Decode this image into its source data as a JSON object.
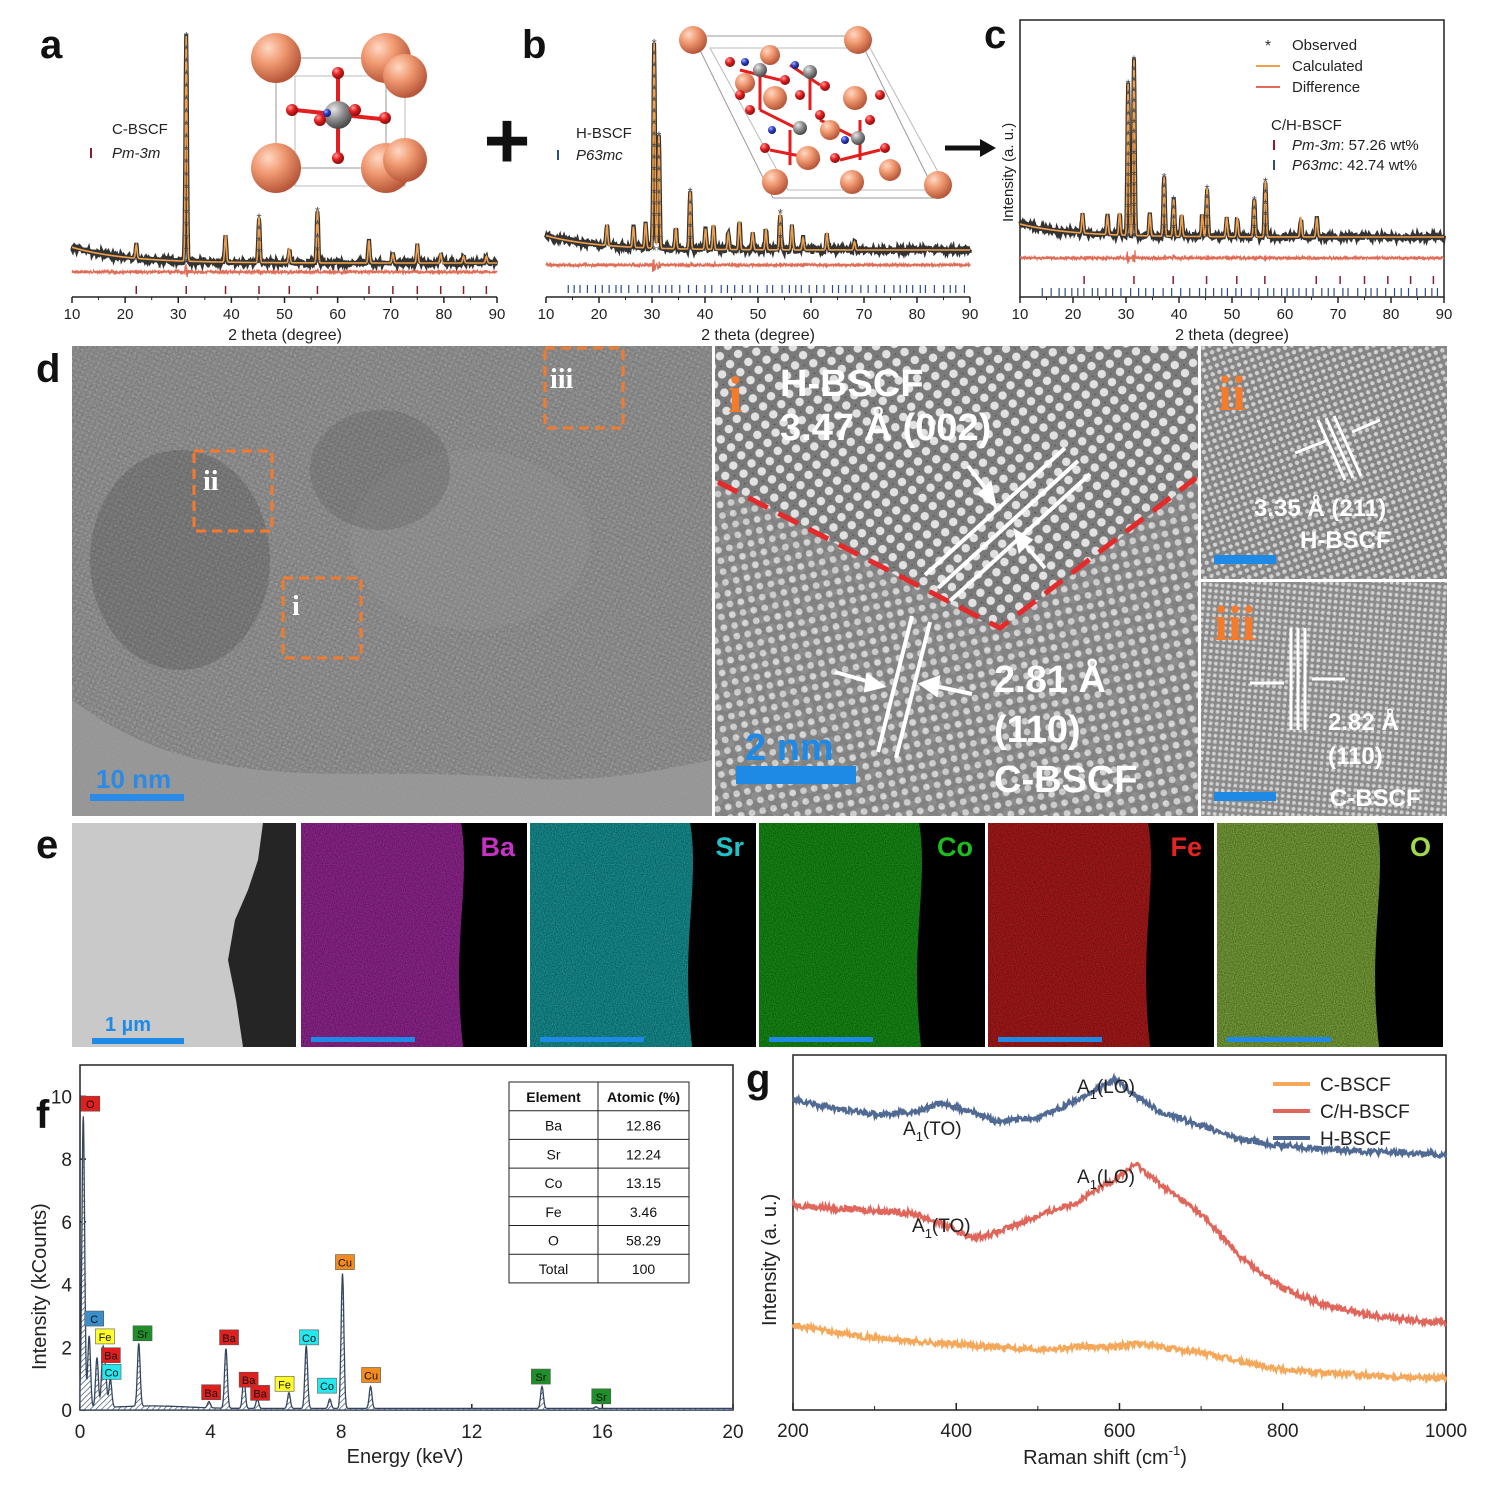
{
  "panels": {
    "a": "a",
    "b": "b",
    "c": "c",
    "d": "d",
    "e": "e",
    "f": "f",
    "g": "g"
  },
  "xrd": {
    "xlabel": "2 theta (degree)",
    "ylabel_c": "Intensity (a. u.)",
    "ticks": [
      "10",
      "20",
      "30",
      "40",
      "50",
      "60",
      "70",
      "80",
      "90"
    ],
    "a": {
      "sample": "C-BSCF",
      "phase": "Pm-3m"
    },
    "b": {
      "sample": "H-BSCF",
      "phase": "P63mc"
    },
    "c": {
      "legend": [
        "Observed",
        "Calculated",
        "Difference"
      ],
      "sample": "C/H-BSCF",
      "phase1": "Pm-3m",
      "phase1_value": ": 57.26 wt%",
      "phase2": "P63mc",
      "phase2_value": ": 42.74 wt%"
    },
    "colors": {
      "observed": "#333333",
      "calculated": "#f0a04b",
      "difference": "#e06c56",
      "tick_c": "#8b1c2c",
      "tick_h": "#2c4a8c"
    }
  },
  "chart_data": [
    {
      "type": "scatter",
      "title": "a",
      "xlabel": "2 theta (degree)",
      "ylabel": "",
      "xlim": [
        10,
        90
      ],
      "series": [
        {
          "name": "C-BSCF (Pm-3m)",
          "peaks_x": [
            22.1,
            31.5,
            38.9,
            45.2,
            50.9,
            56.2,
            65.9,
            70.4,
            75.0,
            79.4,
            83.7,
            88.0
          ],
          "peaks_y": [
            0.06,
            1.0,
            0.12,
            0.2,
            0.06,
            0.23,
            0.1,
            0.04,
            0.08,
            0.04,
            0.03,
            0.03
          ]
        }
      ]
    },
    {
      "type": "scatter",
      "title": "b",
      "xlabel": "2 theta (degree)",
      "ylabel": "",
      "xlim": [
        10,
        90
      ],
      "series": [
        {
          "name": "H-BSCF (P63mc)",
          "peaks_x": [
            21.5,
            26.5,
            28.8,
            30.4,
            31.3,
            34.5,
            37.2,
            40.1,
            41.6,
            44.4,
            46.5,
            49.0,
            51.5,
            54.2,
            56.4,
            58.5,
            63.0,
            68.2
          ],
          "peaks_y": [
            0.1,
            0.1,
            0.12,
            1.0,
            0.55,
            0.1,
            0.28,
            0.1,
            0.12,
            0.08,
            0.14,
            0.08,
            0.1,
            0.18,
            0.12,
            0.06,
            0.08,
            0.04
          ]
        }
      ]
    },
    {
      "type": "scatter",
      "title": "c",
      "xlabel": "2 theta (degree)",
      "ylabel": "Intensity (a. u.)",
      "xlim": [
        10,
        90
      ],
      "series": [
        {
          "name": "C/H-BSCF",
          "peaks_x": [
            21.8,
            26.5,
            28.8,
            30.4,
            31.5,
            34.5,
            37.2,
            39.0,
            40.5,
            44.4,
            45.3,
            49.0,
            51.0,
            54.2,
            56.3,
            63.0,
            66.0
          ],
          "peaks_y": [
            0.1,
            0.1,
            0.12,
            0.82,
            0.95,
            0.12,
            0.32,
            0.2,
            0.12,
            0.12,
            0.26,
            0.1,
            0.1,
            0.2,
            0.3,
            0.1,
            0.1
          ]
        }
      ]
    },
    {
      "type": "bar",
      "title": "f",
      "xlabel": "Energy (keV)",
      "ylabel": "Intensity (kCounts)",
      "xlim": [
        0,
        20
      ],
      "ylim": [
        0,
        11
      ],
      "x": [
        0.1,
        0.28,
        0.52,
        0.7,
        0.78,
        0.93,
        1.8,
        3.95,
        4.47,
        5.02,
        5.43,
        6.4,
        6.93,
        7.65,
        8.04,
        8.9,
        14.15,
        15.8
      ],
      "values": [
        9.3,
        2.3,
        1.6,
        1.75,
        1.0,
        0.9,
        2.0,
        0.2,
        1.9,
        1.0,
        0.3,
        0.5,
        2.0,
        0.3,
        4.3,
        0.7,
        0.7,
        0.05
      ],
      "peak_labels": [
        {
          "text": "O",
          "x": 0.3,
          "y": 9.75,
          "color": "#e0201e"
        },
        {
          "text": "C",
          "x": 0.42,
          "y": 2.9,
          "color": "#3a8ec9"
        },
        {
          "text": "Fe",
          "x": 0.75,
          "y": 2.33,
          "color": "#ffff2a"
        },
        {
          "text": "Ba",
          "x": 0.93,
          "y": 1.73,
          "color": "#e0201e"
        },
        {
          "text": "Co",
          "x": 0.95,
          "y": 1.2,
          "color": "#24e8ee"
        },
        {
          "text": "Sr",
          "x": 1.9,
          "y": 2.43,
          "color": "#1f8f2a"
        },
        {
          "text": "Ba",
          "x": 4.0,
          "y": 0.55,
          "color": "#e0201e"
        },
        {
          "text": "Ba",
          "x": 4.55,
          "y": 2.3,
          "color": "#e0201e"
        },
        {
          "text": "Ba",
          "x": 5.15,
          "y": 0.95,
          "color": "#e0201e"
        },
        {
          "text": "Ba",
          "x": 5.5,
          "y": 0.53,
          "color": "#e0201e"
        },
        {
          "text": "Fe",
          "x": 6.25,
          "y": 0.82,
          "color": "#ffff2a"
        },
        {
          "text": "Co",
          "x": 7.0,
          "y": 2.3,
          "color": "#24e8ee"
        },
        {
          "text": "Co",
          "x": 7.55,
          "y": 0.76,
          "color": "#24e8ee"
        },
        {
          "text": "Cu",
          "x": 8.1,
          "y": 4.7,
          "color": "#f28c1e"
        },
        {
          "text": "Cu",
          "x": 8.9,
          "y": 1.1,
          "color": "#f28c1e"
        },
        {
          "text": "Sr",
          "x": 14.1,
          "y": 1.05,
          "color": "#1f8f2a"
        },
        {
          "text": "Sr",
          "x": 15.95,
          "y": 0.42,
          "color": "#1f8f2a"
        }
      ]
    },
    {
      "type": "line",
      "title": "g",
      "xlabel": "Raman shift (cm-1)",
      "ylabel": "Intensity (a. u.)",
      "xlim": [
        200,
        1000
      ],
      "x": [
        200,
        250,
        300,
        350,
        380,
        420,
        450,
        500,
        550,
        595,
        620,
        650,
        700,
        750,
        800,
        850,
        900,
        950,
        1000
      ],
      "series": [
        {
          "name": "H-BSCF",
          "values": [
            8.4,
            8.15,
            8.0,
            8.05,
            8.3,
            8.05,
            7.8,
            7.9,
            8.4,
            8.95,
            8.5,
            8.05,
            7.7,
            7.3,
            7.15,
            7.05,
            7.0,
            6.95,
            6.9
          ]
        },
        {
          "name": "C/H-BSCF",
          "values": [
            5.55,
            5.45,
            5.4,
            5.3,
            5.05,
            4.65,
            4.8,
            5.25,
            5.65,
            6.25,
            6.65,
            6.1,
            5.3,
            4.1,
            3.3,
            2.85,
            2.6,
            2.45,
            2.35
          ]
        },
        {
          "name": "C-BSCF",
          "values": [
            2.3,
            2.1,
            1.95,
            1.85,
            1.8,
            1.75,
            1.7,
            1.65,
            1.7,
            1.72,
            1.8,
            1.7,
            1.55,
            1.3,
            1.1,
            1.0,
            0.95,
            0.9,
            0.85
          ]
        }
      ],
      "annotations": [
        "A1(TO)",
        "A1(LO)",
        "A1(TO)",
        "A1(LO)"
      ]
    }
  ],
  "tem": {
    "scale_main": "10 nm",
    "scale_i": "2 nm",
    "roi": [
      "i",
      "ii",
      "iii"
    ],
    "i_title": "H-BSCF",
    "i_spacing": "3.47 Å (002)",
    "i_cspacing": "2.81 Å",
    "i_cplane": "(110)",
    "i_csample": "C-BSCF",
    "ii_spacing": "3.35 Å (211)",
    "ii_sample": "H-BSCF",
    "iii_spacing": "2.82 Å",
    "iii_plane": "(110)",
    "iii_sample": "C-BSCF"
  },
  "eds_map": {
    "scale": "1 µm",
    "elements": [
      {
        "name": "Ba",
        "color": "#c532c4"
      },
      {
        "name": "Sr",
        "color": "#1fc3c7"
      },
      {
        "name": "Co",
        "color": "#1dbd1c"
      },
      {
        "name": "Fe",
        "color": "#e52323"
      },
      {
        "name": "O",
        "color": "#a2d84c"
      }
    ]
  },
  "eds_spec": {
    "xlabel": "Energy (keV)",
    "ylabel": "Intensity (kCounts)",
    "xticks": [
      "0",
      "4",
      "8",
      "12",
      "16",
      "20"
    ],
    "yticks": [
      "0",
      "2",
      "4",
      "6",
      "8",
      "10"
    ],
    "table_header": [
      "Element",
      "Atomic (%)"
    ],
    "table_rows": [
      [
        "Ba",
        "12.86"
      ],
      [
        "Sr",
        "12.24"
      ],
      [
        "Co",
        "13.15"
      ],
      [
        "Fe",
        "3.46"
      ],
      [
        "O",
        "58.29"
      ],
      [
        "Total",
        "100"
      ]
    ]
  },
  "raman": {
    "xlabel": "Raman shift (cm",
    "xlabel_sup": "-1",
    "xlabel_end": ")",
    "ylabel": "Intensity (a. u.)",
    "xticks": [
      "200",
      "400",
      "600",
      "800",
      "1000"
    ],
    "legend": [
      "C-BSCF",
      "C/H-BSCF",
      "H-BSCF"
    ],
    "colors": [
      "#f5a85a",
      "#e0655a",
      "#516a93"
    ],
    "ann_a": "A",
    "ann_sub": "1",
    "ann_to": "(TO)",
    "ann_lo": "(LO)"
  }
}
